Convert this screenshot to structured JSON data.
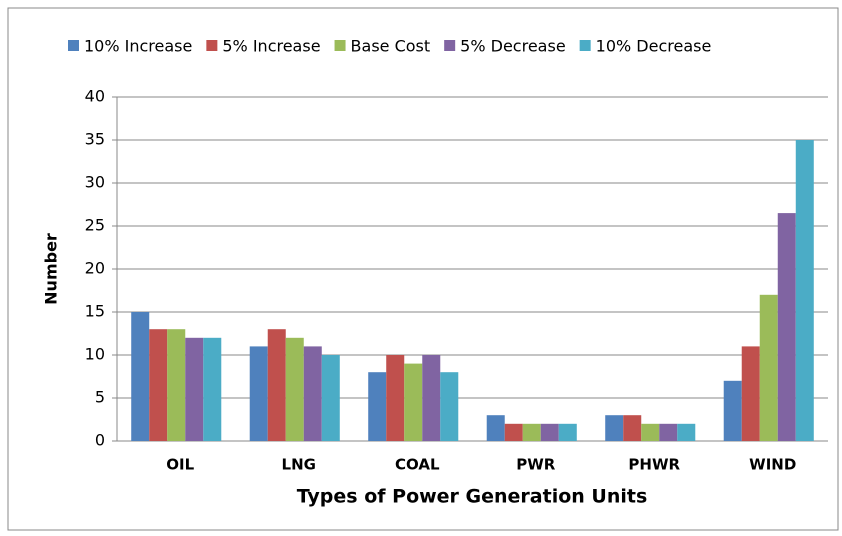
{
  "chart_data": {
    "type": "bar",
    "x_label": "Types of Power Generation Units",
    "y_label": "Number",
    "categories": [
      "OIL",
      "LNG",
      "COAL",
      "PWR",
      "PHWR",
      "WIND"
    ],
    "series": [
      {
        "name": "10% Increase",
        "color": "#4f81bd",
        "values": [
          15,
          11,
          8,
          3,
          3,
          7
        ]
      },
      {
        "name": "5% Increase",
        "color": "#c0504d",
        "values": [
          13,
          13,
          10,
          2,
          3,
          11
        ]
      },
      {
        "name": "Base Cost",
        "color": "#9bbb59",
        "values": [
          13,
          12,
          9,
          2,
          2,
          17
        ]
      },
      {
        "name": "5% Decrease",
        "color": "#8064a2",
        "values": [
          12,
          11,
          10,
          2,
          2,
          26.5
        ]
      },
      {
        "name": "10% Decrease",
        "color": "#4bacc6",
        "values": [
          12,
          10,
          8,
          2,
          2,
          35
        ]
      }
    ],
    "ylim": [
      0,
      40
    ],
    "yticks": [
      0,
      5,
      10,
      15,
      20,
      25,
      30,
      35,
      40
    ],
    "grid": true,
    "legend": "top"
  }
}
